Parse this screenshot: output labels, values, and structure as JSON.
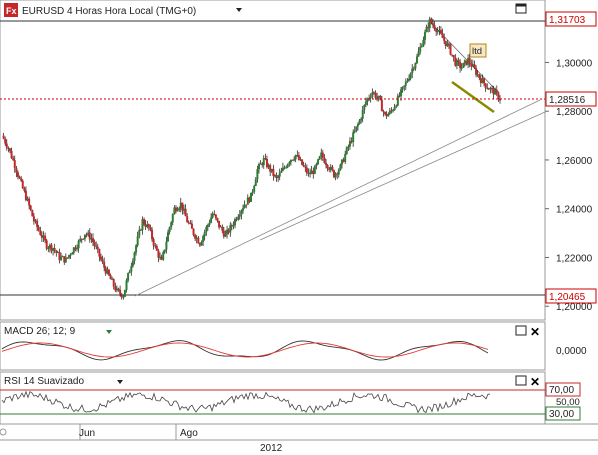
{
  "header": {
    "logo": "Fx",
    "title": "EURUSD 4 Horas Hora Local (TMG+0)",
    "dropdown_icon": "triangle-down-icon",
    "maximize_icon": "maximize-icon"
  },
  "main_panel": {
    "price_axis": [
      "1,30000",
      "1,28000",
      "1,26000",
      "1,24000",
      "1,22000",
      "1,20000"
    ],
    "high_tag": "1,31703",
    "current_tag": "1,28516",
    "low_tag": "1,20465",
    "annotation": "ltd",
    "colors": {
      "up": "#2e7d32",
      "down": "#c62828",
      "current_line": "#cc0000",
      "tags": "#cc0000",
      "trend_highlight": "#8a8a00"
    }
  },
  "macd_panel": {
    "title": "MACD 26; 12; 9",
    "axis_label": "0,0000",
    "colors": {
      "macd": "#333333",
      "signal": "#e53935"
    }
  },
  "rsi_panel": {
    "title": "RSI 14 Suavizado",
    "axis_labels": {
      "upper": "70,00",
      "mid": "50,00",
      "lower": "30,00"
    },
    "colors": {
      "upper": "#c62828",
      "lower": "#2e7d32",
      "line": "#444444"
    }
  },
  "time_axis": {
    "months": [
      "Jun",
      "Ago"
    ],
    "year": "2012"
  },
  "chart_data": {
    "type": "line",
    "title": "EURUSD 4 Horas Hora Local (TMG+0)",
    "series": [
      {
        "values": [
          1.27,
          1.265,
          1.258,
          1.25,
          1.243,
          1.235,
          1.23,
          1.225,
          1.224,
          1.22,
          1.219,
          1.223,
          1.226,
          1.23,
          1.228,
          1.222,
          1.216,
          1.211,
          1.206,
          1.2046,
          1.215,
          1.225,
          1.235,
          1.232,
          1.224,
          1.218,
          1.23,
          1.24,
          1.242,
          1.235,
          1.23,
          1.226,
          1.232,
          1.238,
          1.233,
          1.229,
          1.233,
          1.238,
          1.242,
          1.245,
          1.256,
          1.26,
          1.256,
          1.252,
          1.256,
          1.26,
          1.262,
          1.258,
          1.254,
          1.256,
          1.262,
          1.258,
          1.254,
          1.257,
          1.264,
          1.27,
          1.276,
          1.284,
          1.288,
          1.285,
          1.278,
          1.28,
          1.285,
          1.29,
          1.296,
          1.302,
          1.31,
          1.317,
          1.314,
          1.31,
          1.306,
          1.3,
          1.298,
          1.301,
          1.297,
          1.293,
          1.29,
          1.288,
          1.2852
        ]
      }
    ],
    "ylim": [
      1.2,
      1.32
    ],
    "grid": false,
    "legend": "none"
  }
}
